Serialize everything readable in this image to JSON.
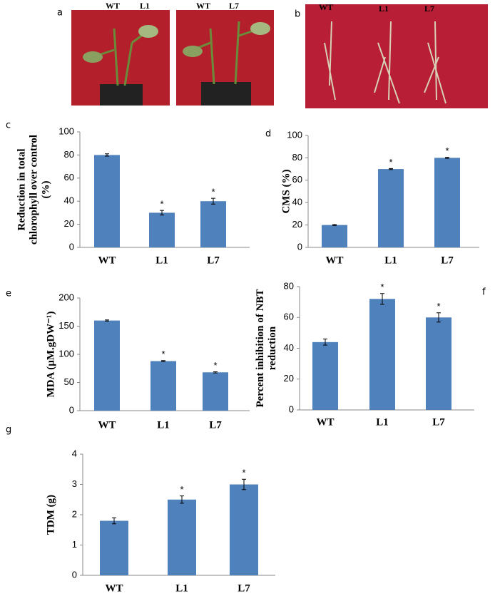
{
  "photos": [
    {
      "label": "a",
      "texts": [
        "WT",
        "L1",
        "WT",
        "L7"
      ]
    },
    {
      "label": "b",
      "texts": [
        "WT",
        "L1",
        "L7"
      ]
    }
  ],
  "chart_data": [
    {
      "type": "bar",
      "panel": "c",
      "ylabel": [
        "Reduction in total",
        "chlorophyll over control",
        "(%)"
      ],
      "categories": [
        "WT",
        "L1",
        "L7"
      ],
      "values": [
        80,
        30,
        40
      ],
      "errors": [
        1,
        2,
        2.5
      ],
      "annotations": [
        null,
        "*",
        "*"
      ],
      "color": "#4f81bd",
      "ylim": [
        0,
        100
      ],
      "yticks": [
        0,
        20,
        40,
        60,
        80,
        100
      ]
    },
    {
      "type": "bar",
      "panel": "d",
      "ylabel": [
        "CMS (%)"
      ],
      "categories": [
        "WT",
        "L1",
        "L7"
      ],
      "values": [
        20,
        70,
        80
      ],
      "errors": [
        0.5,
        0.5,
        0.5
      ],
      "annotations": [
        null,
        "*",
        "*"
      ],
      "color": "#4f81bd",
      "ylim": [
        0,
        100
      ],
      "yticks": [
        0,
        20,
        40,
        60,
        80,
        100
      ]
    },
    {
      "type": "bar",
      "panel": "e",
      "ylabel": [
        "MDA (µM.gDW⁻¹)"
      ],
      "categories": [
        "WT",
        "L1",
        "L7"
      ],
      "values": [
        160,
        88,
        68
      ],
      "errors": [
        1,
        1,
        1
      ],
      "annotations": [
        null,
        "*",
        "*"
      ],
      "color": "#4f81bd",
      "ylim": [
        0,
        200
      ],
      "yticks": [
        0,
        50,
        100,
        150,
        200
      ]
    },
    {
      "type": "bar",
      "panel": "f",
      "ylabel": [
        "Percent inhibition of NBT",
        "reduction"
      ],
      "categories": [
        "WT",
        "L1",
        "L7"
      ],
      "values": [
        44,
        72,
        60
      ],
      "errors": [
        2,
        3.5,
        3
      ],
      "annotations": [
        null,
        "*",
        "*"
      ],
      "color": "#4f81bd",
      "ylim": [
        0,
        80
      ],
      "yticks": [
        0,
        20,
        40,
        60,
        80
      ]
    },
    {
      "type": "bar",
      "panel": "g",
      "ylabel": [
        "TDM (g)"
      ],
      "categories": [
        "WT",
        "L1",
        "L7"
      ],
      "values": [
        1.8,
        2.5,
        3.0
      ],
      "errors": [
        0.1,
        0.12,
        0.17
      ],
      "annotations": [
        null,
        "*",
        "*"
      ],
      "color": "#4f81bd",
      "ylim": [
        0,
        4
      ],
      "yticks": [
        0,
        1,
        2,
        3,
        4
      ]
    }
  ]
}
